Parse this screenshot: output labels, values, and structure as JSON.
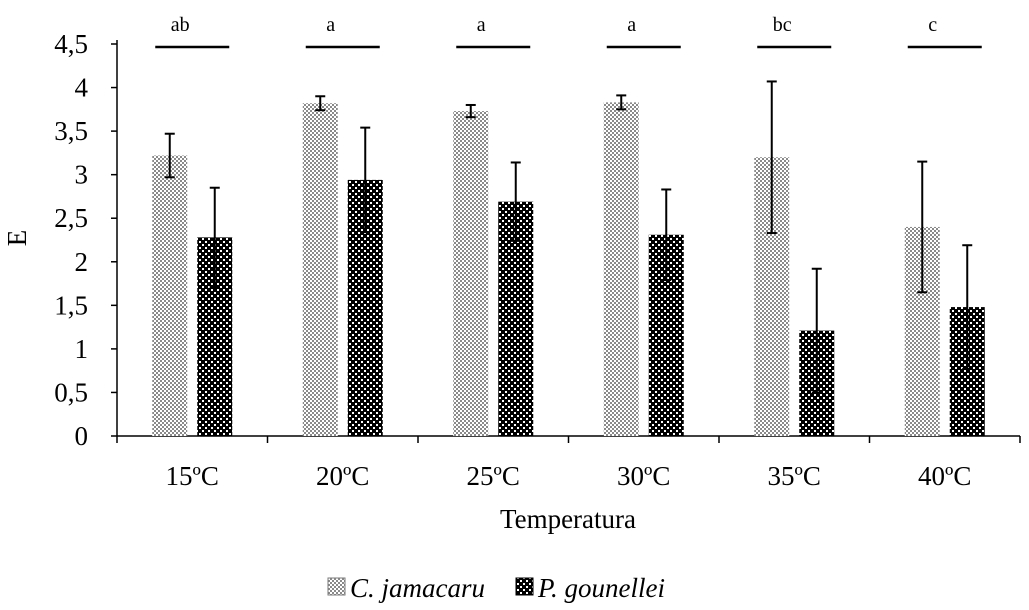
{
  "chart_data": {
    "type": "bar",
    "title": "",
    "xlabel": "Temperatura",
    "ylabel": "E",
    "ylim": [
      0,
      4.5
    ],
    "yticks": [
      "0",
      "0,5",
      "1",
      "1,5",
      "2",
      "2,5",
      "3",
      "3,5",
      "4",
      "4,5"
    ],
    "categories": [
      "15ºC",
      "20ºC",
      "25ºC",
      "30ºC",
      "35ºC",
      "40ºC"
    ],
    "significance_letters": [
      "ab",
      "a",
      "a",
      "a",
      "bc",
      "c"
    ],
    "series": [
      {
        "name": "C. jamacaru",
        "values": [
          3.22,
          3.82,
          3.73,
          3.83,
          3.2,
          2.4
        ],
        "error": [
          0.25,
          0.08,
          0.07,
          0.08,
          0.87,
          0.75
        ],
        "color": "#b8b8b8",
        "pattern": "light-checker"
      },
      {
        "name": "P. gounellei",
        "values": [
          2.28,
          2.94,
          2.69,
          2.31,
          1.21,
          1.48
        ],
        "error": [
          0.57,
          0.6,
          0.45,
          0.52,
          0.71,
          0.71
        ],
        "color": "#000000",
        "pattern": "dark-dots"
      }
    ],
    "grid": false,
    "legend_position": "bottom"
  }
}
